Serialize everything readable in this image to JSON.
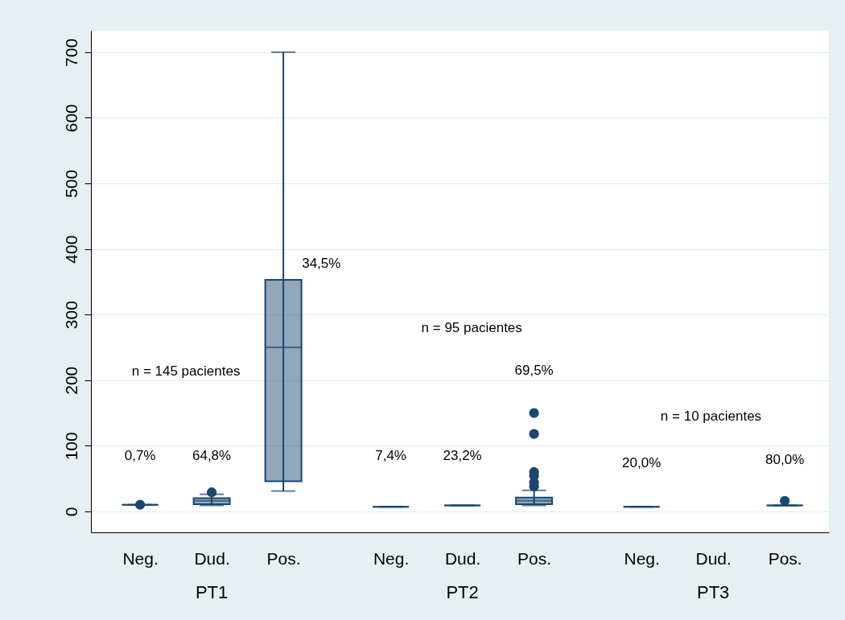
{
  "chart_data": {
    "type": "box",
    "categories": [
      "Neg.",
      "Dud.",
      "Pos.",
      "Neg.",
      "Dud.",
      "Pos.",
      "Neg.",
      "Dud.",
      "Pos."
    ],
    "series": [
      {
        "color": "#1a476f",
        "boxes": [
          {
            "low": 10,
            "q1": 10,
            "median": 10,
            "q3": 10,
            "high": 10,
            "outliers": [
              10
            ]
          },
          {
            "low": 9,
            "q1": 11,
            "median": 16,
            "q3": 20,
            "high": 26,
            "outliers": [
              29
            ]
          },
          {
            "low": 31,
            "q1": 46,
            "median": 250,
            "q3": 353,
            "high": 700
          },
          {
            "low": 7,
            "q1": 7,
            "median": 7,
            "q3": 7,
            "high": 7
          },
          {
            "low": 9,
            "q1": 9,
            "median": 9,
            "q3": 9,
            "high": 9
          },
          {
            "low": 9,
            "q1": 11,
            "median": 16,
            "q3": 21,
            "high": 32,
            "outliers": [
              38,
              44,
              54,
              60,
              118,
              150
            ]
          },
          {
            "low": 7,
            "q1": 7,
            "median": 7,
            "q3": 7,
            "high": 7
          },
          null,
          {
            "low": 9,
            "q1": 9,
            "median": 9,
            "q3": 9,
            "high": 9,
            "outliers": [
              16
            ]
          }
        ]
      }
    ],
    "ylim": [
      -32,
      733
    ],
    "yticks": [
      0,
      100,
      200,
      300,
      400,
      500,
      600,
      700
    ],
    "grid": "y",
    "annotations": [
      "0,7%",
      "64,8%",
      "34,5%",
      "n = 145 pacientes",
      "7,4%",
      "23,2%",
      "69,5%",
      "n = 95 pacientes",
      "20,0%",
      "80,0%",
      "n = 10 pacientes",
      "PT1",
      "PT2",
      "PT3"
    ]
  }
}
